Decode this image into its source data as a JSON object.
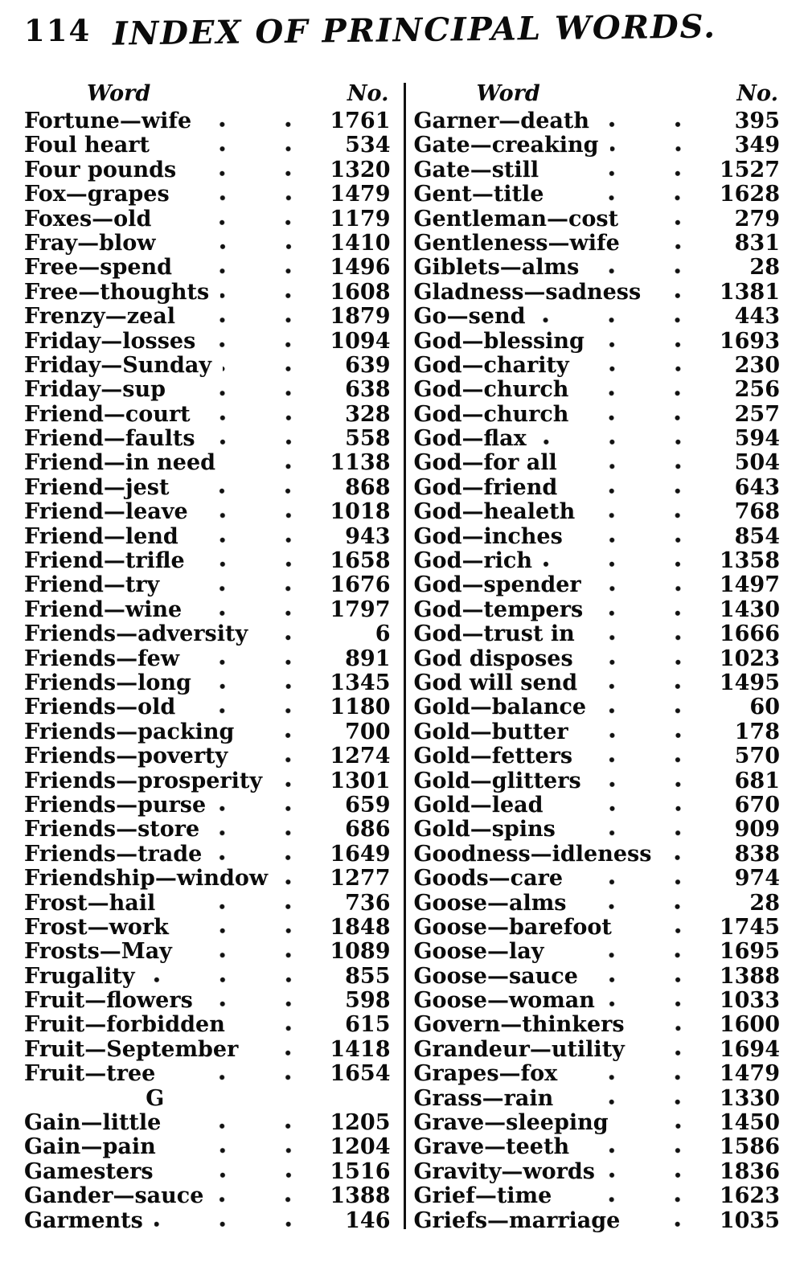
{
  "page": {
    "page_number": "114",
    "title": "INDEX OF PRINCIPAL WORDS.",
    "col_header_word": "Word",
    "col_header_no": "No."
  },
  "columns": [
    {
      "entries": [
        {
          "word": "Fortune—wife",
          "no": "1761"
        },
        {
          "word": "Foul heart",
          "no": "534"
        },
        {
          "word": "Four pounds",
          "no": "1320"
        },
        {
          "word": "Fox—grapes",
          "no": "1479"
        },
        {
          "word": "Foxes—old",
          "no": "1179"
        },
        {
          "word": "Fray—blow",
          "no": "1410"
        },
        {
          "word": "Free—spend",
          "no": "1496"
        },
        {
          "word": "Free—thoughts",
          "no": "1608"
        },
        {
          "word": "Frenzy—zeal",
          "no": "1879"
        },
        {
          "word": "Friday—losses",
          "no": "1094"
        },
        {
          "word": "Friday—Sunday",
          "no": "639"
        },
        {
          "word": "Friday—sup",
          "no": "638"
        },
        {
          "word": "Friend—court",
          "no": "328"
        },
        {
          "word": "Friend—faults",
          "no": "558"
        },
        {
          "word": "Friend—in need",
          "no": "1138"
        },
        {
          "word": "Friend—jest",
          "no": "868"
        },
        {
          "word": "Friend—leave",
          "no": "1018"
        },
        {
          "word": "Friend—lend",
          "no": "943"
        },
        {
          "word": "Friend—trifle",
          "no": "1658"
        },
        {
          "word": "Friend—try",
          "no": "1676"
        },
        {
          "word": "Friend—wine",
          "no": "1797"
        },
        {
          "word": "Friends—adversity",
          "no": "6"
        },
        {
          "word": "Friends—few",
          "no": "891"
        },
        {
          "word": "Friends—long",
          "no": "1345"
        },
        {
          "word": "Friends—old",
          "no": "1180"
        },
        {
          "word": "Friends—packing",
          "no": "700"
        },
        {
          "word": "Friends—poverty",
          "no": "1274"
        },
        {
          "word": "Friends—prosperity",
          "no": "1301"
        },
        {
          "word": "Friends—purse",
          "no": "659"
        },
        {
          "word": "Friends—store",
          "no": "686"
        },
        {
          "word": "Friends—trade",
          "no": "1649"
        },
        {
          "word": "Friendship—window",
          "no": "1277"
        },
        {
          "word": "Frost—hail",
          "no": "736"
        },
        {
          "word": "Frost—work",
          "no": "1848"
        },
        {
          "word": "Frosts—May",
          "no": "1089"
        },
        {
          "word": "Frugality",
          "no": "855"
        },
        {
          "word": "Fruit—flowers",
          "no": "598"
        },
        {
          "word": "Fruit—forbidden",
          "no": "615"
        },
        {
          "word": "Fruit—September",
          "no": "1418"
        },
        {
          "word": "Fruit—tree",
          "no": "1654"
        },
        {
          "section": "G"
        },
        {
          "word": "Gain—little",
          "no": "1205"
        },
        {
          "word": "Gain—pain",
          "no": "1204"
        },
        {
          "word": "Gamesters",
          "no": "1516"
        },
        {
          "word": "Gander—sauce",
          "no": "1388"
        },
        {
          "word": "Garments",
          "no": "146"
        }
      ]
    },
    {
      "entries": [
        {
          "word": "Garner—death",
          "no": "395"
        },
        {
          "word": "Gate—creaking",
          "no": "349"
        },
        {
          "word": "Gate—still",
          "no": "1527"
        },
        {
          "word": "Gent—title",
          "no": "1628"
        },
        {
          "word": "Gentleman—cost",
          "no": "279"
        },
        {
          "word": "Gentleness—wife",
          "no": "831"
        },
        {
          "word": "Giblets—alms",
          "no": "28"
        },
        {
          "word": "Gladness—sadness",
          "no": "1381"
        },
        {
          "word": "Go—send",
          "no": "443"
        },
        {
          "word": "God—blessing",
          "no": "1693"
        },
        {
          "word": "God—charity",
          "no": "230"
        },
        {
          "word": "God—church",
          "no": "256"
        },
        {
          "word": "God—church",
          "no": "257"
        },
        {
          "word": "God—flax",
          "no": "594"
        },
        {
          "word": "God—for all",
          "no": "504"
        },
        {
          "word": "God—friend",
          "no": "643"
        },
        {
          "word": "God—healeth",
          "no": "768"
        },
        {
          "word": "God—inches",
          "no": "854"
        },
        {
          "word": "God—rich",
          "no": "1358"
        },
        {
          "word": "God—spender",
          "no": "1497"
        },
        {
          "word": "God—tempers",
          "no": "1430"
        },
        {
          "word": "God—trust in",
          "no": "1666"
        },
        {
          "word": "God disposes",
          "no": "1023"
        },
        {
          "word": "God will send",
          "no": "1495"
        },
        {
          "word": "Gold—balance",
          "no": "60"
        },
        {
          "word": "Gold—butter",
          "no": "178"
        },
        {
          "word": "Gold—fetters",
          "no": "570"
        },
        {
          "word": "Gold—glitters",
          "no": "681"
        },
        {
          "word": "Gold—lead",
          "no": "670"
        },
        {
          "word": "Gold—spins",
          "no": "909"
        },
        {
          "word": "Goodness—idleness",
          "no": "838"
        },
        {
          "word": "Goods—care",
          "no": "974"
        },
        {
          "word": "Goose—alms",
          "no": "28"
        },
        {
          "word": "Goose—barefoot",
          "no": "1745"
        },
        {
          "word": "Goose—lay",
          "no": "1695"
        },
        {
          "word": "Goose—sauce",
          "no": "1388"
        },
        {
          "word": "Goose—woman",
          "no": "1033"
        },
        {
          "word": "Govern—thinkers",
          "no": "1600"
        },
        {
          "word": "Grandeur—utility",
          "no": "1694"
        },
        {
          "word": "Grapes—fox",
          "no": "1479"
        },
        {
          "word": "Grass—rain",
          "no": "1330"
        },
        {
          "word": "Grave—sleeping",
          "no": "1450"
        },
        {
          "word": "Grave—teeth",
          "no": "1586"
        },
        {
          "word": "Gravity—words",
          "no": "1836"
        },
        {
          "word": "Grief—time",
          "no": "1623"
        },
        {
          "word": "Griefs—marriage",
          "no": "1035"
        }
      ]
    }
  ]
}
